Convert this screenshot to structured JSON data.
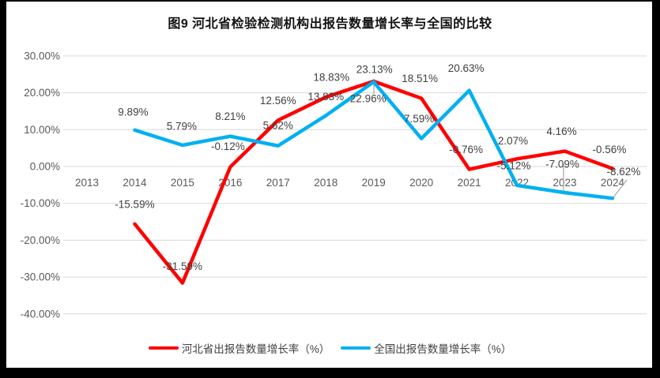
{
  "title": "图9 河北省检验检测机构出报告数量增长率与全国的比较",
  "chart_data": {
    "type": "line",
    "title": "图9 河北省检验检测机构出报告数量增长率与全国的比较",
    "categories": [
      "2013",
      "2014",
      "2015",
      "2016",
      "2017",
      "2018",
      "2019",
      "2020",
      "2021",
      "2022",
      "2023",
      "2024"
    ],
    "series": [
      {
        "name": "河北省出报告数量增长率（%）",
        "color": "#FF0000",
        "values": [
          null,
          -15.59,
          -31.59,
          -0.12,
          12.56,
          18.83,
          23.13,
          18.51,
          -0.76,
          2.07,
          4.16,
          -0.56
        ]
      },
      {
        "name": "全国出报告数量增长率（%）",
        "color": "#00B0F0",
        "values": [
          null,
          9.89,
          5.79,
          8.21,
          5.62,
          13.83,
          22.96,
          7.59,
          20.63,
          -5.12,
          -7.09,
          -8.62
        ]
      }
    ],
    "y_ticks": [
      30,
      20,
      10,
      0,
      -10,
      -20,
      -30,
      -40
    ],
    "y_tick_labels": [
      "30.00%",
      "20.00%",
      "10.00%",
      "0.00%",
      "-10.00%",
      "-20.00%",
      "-30.00%",
      "-40.00%"
    ],
    "ylim": [
      -40,
      30
    ],
    "xlabel": "",
    "ylabel": "",
    "grid": true,
    "legend_position": "bottom",
    "data_labels": "value.toFixed(2) + %"
  },
  "colors": {
    "grid": "#D9D9D9",
    "tick_text": "#595959",
    "data_label_text": "#404040",
    "leader_line": "#A6A6A6",
    "frame": "#000000",
    "background": "#FFFFFF"
  }
}
